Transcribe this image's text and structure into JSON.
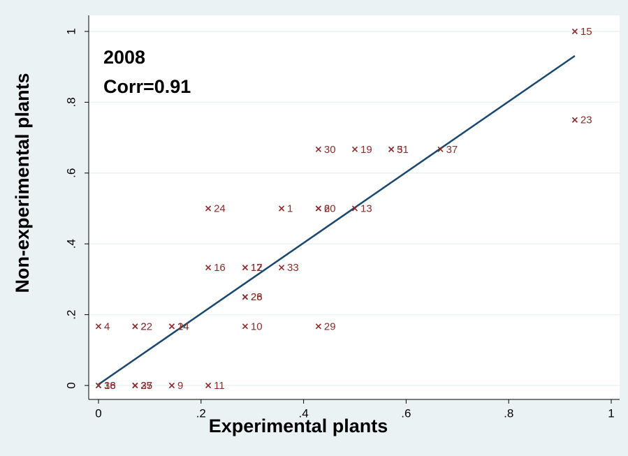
{
  "chart_data": {
    "type": "scatter",
    "annotations": [
      "2008",
      "Corr=0.91"
    ],
    "xlabel": "Experimental plants",
    "ylabel": "Non-experimental plants",
    "xlim": [
      0,
      1
    ],
    "ylim": [
      0,
      1
    ],
    "xticks": [
      0,
      {
        "value": 0.2,
        "label": ".2"
      },
      {
        "value": 0.4,
        "label": ".4"
      },
      {
        "value": 0.6,
        "label": ".6"
      },
      {
        "value": 0.8,
        "label": ".8"
      },
      1
    ],
    "yticks": [
      0,
      {
        "value": 0.2,
        "label": ".2"
      },
      {
        "value": 0.4,
        "label": ".4"
      },
      {
        "value": 0.6,
        "label": ".6"
      },
      {
        "value": 0.8,
        "label": ".8"
      },
      1
    ],
    "grid": true,
    "points": {
      "color": "#8b2c2c",
      "x": [
        0.929,
        0.929,
        0.429,
        0.5,
        0.571,
        0.571,
        0.667,
        0.214,
        0.357,
        0.429,
        0.429,
        0.5,
        0.214,
        0.286,
        0.286,
        0.357,
        0.286,
        0.286,
        0,
        0.0714,
        0.0714,
        0.143,
        0.143,
        0.286,
        0.429,
        0,
        0,
        0.0714,
        0.0714,
        0.0714,
        0.143,
        0.214
      ],
      "y": [
        1,
        0.75,
        0.667,
        0.667,
        0.667,
        0.667,
        0.667,
        0.5,
        0.5,
        0.5,
        0.5,
        0.5,
        0.333,
        0.333,
        0.333,
        0.333,
        0.25,
        0.25,
        0.167,
        0.167,
        0.167,
        0.167,
        0.167,
        0.167,
        0.167,
        0,
        0,
        0,
        0,
        0,
        0,
        0
      ],
      "labels": [
        "15",
        "23",
        "30",
        "19",
        "5",
        "31",
        "37",
        "24",
        "1",
        "6",
        "20",
        "13",
        "16",
        "12",
        "17",
        "33",
        "26",
        "28",
        "4",
        "2",
        "22",
        "14",
        "24",
        "10",
        "29",
        "36",
        "18",
        "25",
        "27",
        "35",
        "9",
        "11"
      ]
    },
    "fit_line": {
      "color": "#1a476f",
      "x": [
        0,
        0.929
      ],
      "y": [
        0.003,
        0.931
      ]
    }
  }
}
